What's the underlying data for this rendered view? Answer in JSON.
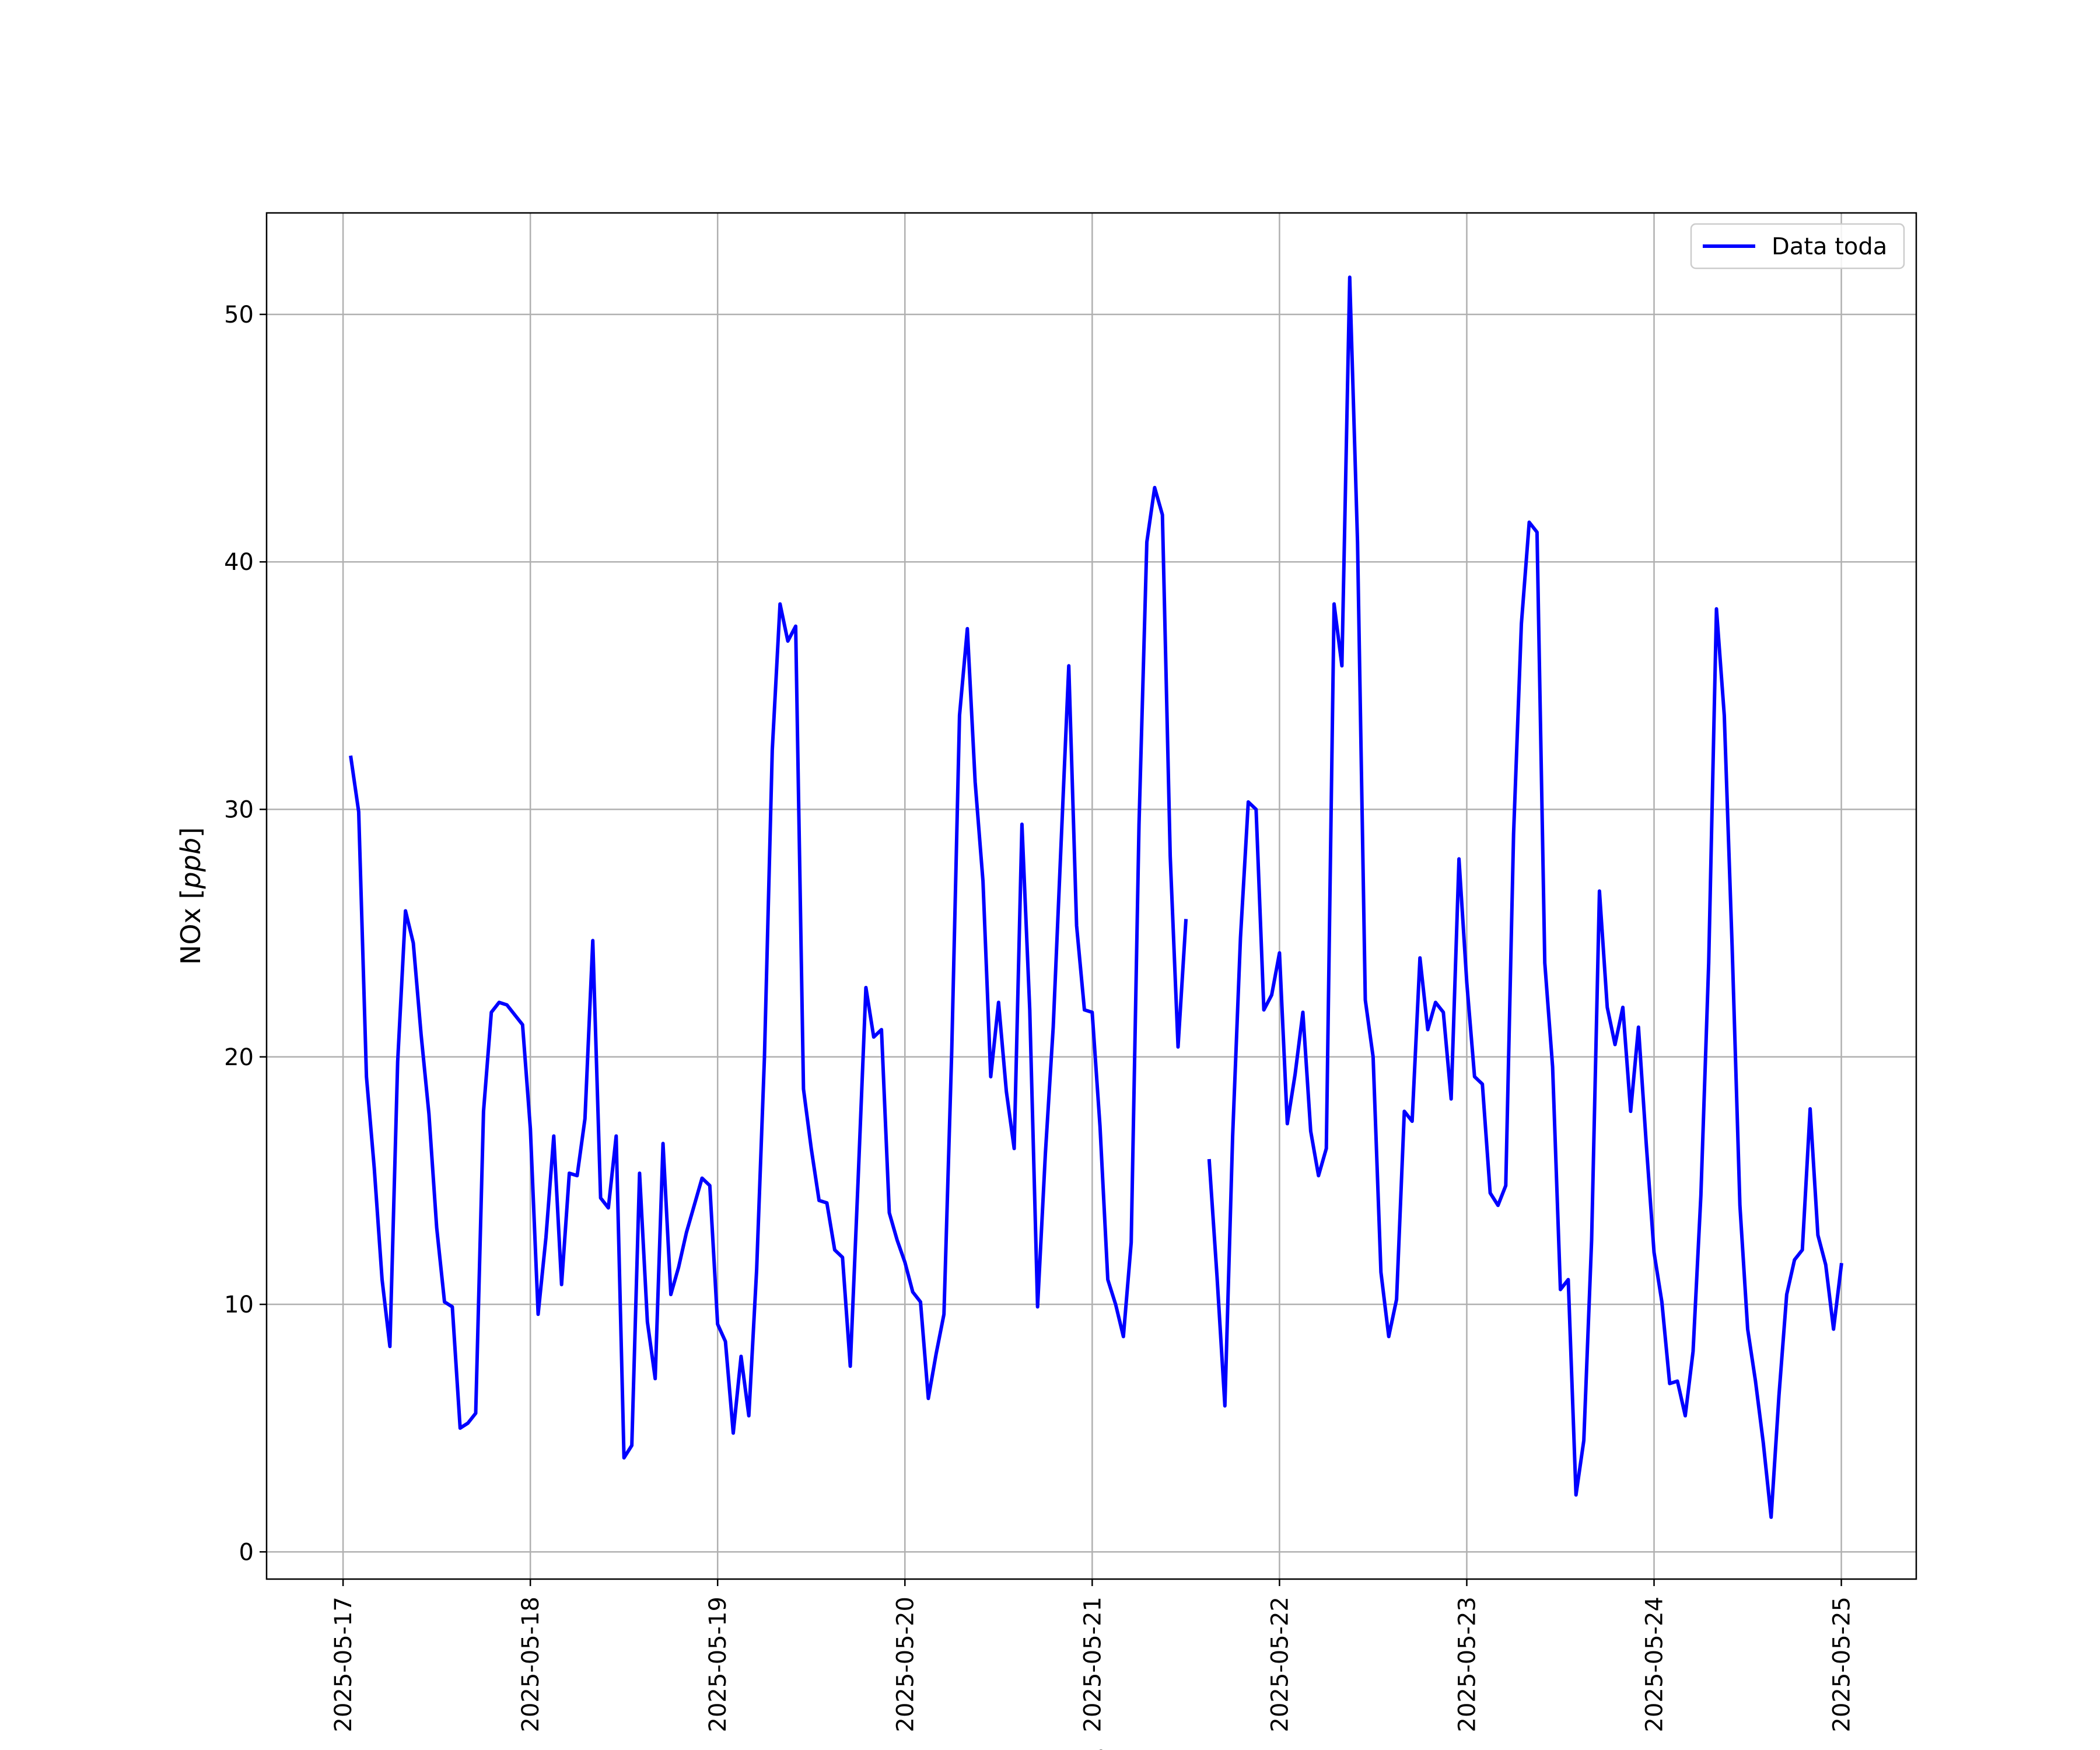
{
  "chart_data": {
    "type": "line",
    "title": "",
    "xlabel": "Fecha",
    "ylabel": "NOx [ppb]",
    "ylabel_main": "NOx ",
    "ylabel_unit": "ppb",
    "xlim": [
      "2025-05-16T14:12",
      "2025-05-25T09:36"
    ],
    "ylim": [
      -1.1,
      54.1
    ],
    "grid": true,
    "legend": "top-right",
    "x_ticks": [
      "2025-05-17",
      "2025-05-18",
      "2025-05-19",
      "2025-05-20",
      "2025-05-21",
      "2025-05-22",
      "2025-05-23",
      "2025-05-24",
      "2025-05-25"
    ],
    "y_ticks": [
      0,
      10,
      20,
      30,
      40,
      50
    ],
    "color": "#0000ff",
    "series": [
      {
        "name": "Data toda",
        "start": "2025-05-17T01:00",
        "interval_hours": 1,
        "values": [
          32.1,
          29.9,
          19.2,
          15.5,
          11.0,
          8.3,
          19.8,
          25.9,
          24.6,
          20.9,
          17.7,
          13.1,
          10.1,
          9.9,
          5.0,
          5.2,
          5.6,
          17.8,
          21.8,
          22.2,
          22.1,
          21.7,
          21.3,
          17.1,
          9.6,
          12.7,
          16.8,
          10.8,
          15.3,
          15.2,
          17.5,
          24.7,
          14.3,
          13.9,
          16.8,
          3.8,
          4.3,
          15.3,
          9.3,
          7.0,
          16.5,
          10.4,
          11.5,
          12.9,
          14.0,
          15.1,
          14.8,
          9.2,
          8.5,
          4.8,
          7.9,
          5.5,
          11.4,
          20.0,
          32.4,
          38.3,
          36.8,
          37.4,
          18.7,
          16.3,
          14.2,
          14.1,
          12.2,
          11.9,
          7.5,
          15.0,
          22.8,
          20.8,
          21.1,
          13.7,
          12.6,
          11.7,
          10.5,
          10.1,
          6.2,
          8.0,
          9.6,
          20.2,
          33.8,
          37.3,
          31.1,
          27.1,
          19.2,
          22.2,
          18.6,
          16.3,
          29.4,
          21.9,
          9.9,
          16.1,
          21.2,
          28.5,
          35.8,
          25.3,
          21.9,
          21.8,
          17.2,
          11.0,
          10.0,
          8.7,
          12.5,
          29.4,
          40.8,
          43.0,
          41.9,
          28.1,
          20.4,
          25.5,
          null,
          null,
          15.8,
          11.1,
          5.9,
          16.8,
          24.8,
          30.3,
          30.0,
          21.9,
          22.5,
          24.2,
          17.3,
          19.3,
          21.8,
          17.0,
          15.2,
          16.3,
          38.3,
          35.8,
          51.5,
          40.8,
          22.3,
          20.0,
          11.3,
          8.7,
          10.2,
          17.8,
          17.4,
          24.0,
          21.1,
          22.2,
          21.8,
          18.3,
          28.0,
          23.0,
          19.2,
          18.9,
          14.5,
          14.0,
          14.8,
          29.0,
          37.5,
          41.6,
          41.2,
          23.8,
          19.6,
          10.6,
          11.0,
          2.3,
          4.5,
          12.6,
          26.7,
          22.0,
          20.5,
          22.0,
          17.8,
          21.2,
          16.5,
          12.1,
          10.1,
          6.8,
          6.9,
          5.5,
          8.1,
          14.4,
          23.8,
          38.1,
          33.8,
          24.5,
          14.0,
          9.0,
          6.9,
          4.4,
          1.4,
          6.3,
          10.4,
          11.8,
          12.2,
          17.9,
          12.8,
          11.6,
          9.0,
          11.6
        ]
      }
    ]
  }
}
